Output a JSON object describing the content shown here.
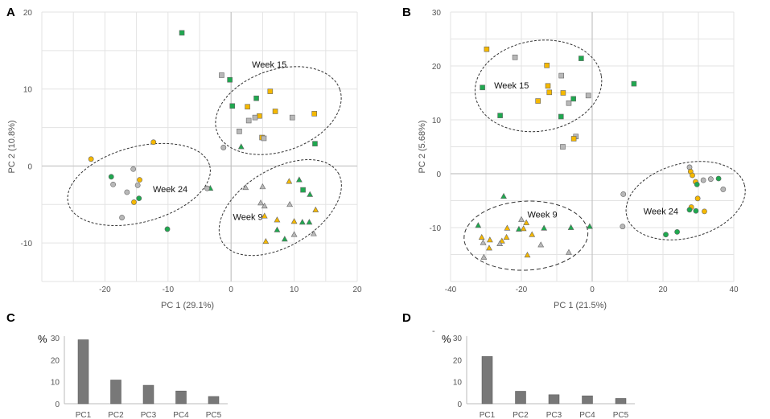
{
  "colors": {
    "green": "#1fa84f",
    "grey": "#b8b8b8",
    "yellow": "#f5b800",
    "bar": "#787878",
    "grid": "#e3e3e3"
  },
  "chart_data": [
    {
      "panel": "A",
      "type": "scatter",
      "xlabel": "PC 1 (29.1%)",
      "ylabel": "PC 2 (10.8%)",
      "xlim": [
        -30,
        20
      ],
      "ylim": [
        -15,
        20
      ],
      "xticks": [
        -20,
        -10,
        0,
        10,
        20
      ],
      "yticks": [
        -10,
        0,
        10,
        20
      ],
      "ellipses": [
        {
          "label": "Week 15",
          "cx": 7.5,
          "cy": 7.2,
          "rx": 10.3,
          "ry": 5.3,
          "angle": -19,
          "dash": "3,2"
        },
        {
          "label": "Week 9",
          "cx": 7.8,
          "cy": -5.4,
          "rx": 10.7,
          "ry": 5.0,
          "angle": -31,
          "dash": "3,2"
        },
        {
          "label": "Week 24",
          "cx": -14.6,
          "cy": -2.4,
          "rx": 11.6,
          "ry": 4.9,
          "angle": -15,
          "dash": "3,2"
        }
      ],
      "group_labels": [
        {
          "text": "Week 15",
          "x": 3.3,
          "y": 12.8
        },
        {
          "text": "Week 9",
          "x": 0.3,
          "y": -7.0
        },
        {
          "text": "Week 24",
          "x": -12.4,
          "y": -3.4
        }
      ],
      "points": [
        {
          "x": -7.8,
          "y": 17.3,
          "shape": "square",
          "color": "green"
        },
        {
          "x": -1.5,
          "y": 11.8,
          "shape": "square",
          "color": "grey"
        },
        {
          "x": -0.2,
          "y": 11.2,
          "shape": "square",
          "color": "green"
        },
        {
          "x": 0.2,
          "y": 7.8,
          "shape": "square",
          "color": "green"
        },
        {
          "x": 4.0,
          "y": 8.8,
          "shape": "square",
          "color": "green"
        },
        {
          "x": 6.2,
          "y": 9.7,
          "shape": "square",
          "color": "yellow"
        },
        {
          "x": 2.6,
          "y": 7.7,
          "shape": "square",
          "color": "yellow"
        },
        {
          "x": 4.5,
          "y": 6.5,
          "shape": "square",
          "color": "yellow"
        },
        {
          "x": 7.0,
          "y": 7.1,
          "shape": "square",
          "color": "yellow"
        },
        {
          "x": 3.8,
          "y": 6.3,
          "shape": "square",
          "color": "grey"
        },
        {
          "x": 2.8,
          "y": 5.9,
          "shape": "square",
          "color": "grey"
        },
        {
          "x": 9.7,
          "y": 6.3,
          "shape": "square",
          "color": "grey"
        },
        {
          "x": 13.2,
          "y": 6.8,
          "shape": "square",
          "color": "yellow"
        },
        {
          "x": 1.3,
          "y": 4.5,
          "shape": "square",
          "color": "grey"
        },
        {
          "x": 4.9,
          "y": 3.7,
          "shape": "square",
          "color": "yellow"
        },
        {
          "x": 5.2,
          "y": 3.6,
          "shape": "square",
          "color": "grey"
        },
        {
          "x": 13.3,
          "y": 2.9,
          "shape": "square",
          "color": "green"
        },
        {
          "x": -1.2,
          "y": 2.4,
          "shape": "circle",
          "color": "grey"
        },
        {
          "x": 1.6,
          "y": 2.5,
          "shape": "triangle",
          "color": "green"
        },
        {
          "x": -3.3,
          "y": -2.9,
          "shape": "triangle",
          "color": "green"
        },
        {
          "x": 2.3,
          "y": -2.8,
          "shape": "triangle",
          "color": "grey"
        },
        {
          "x": 5.0,
          "y": -2.7,
          "shape": "triangle",
          "color": "grey"
        },
        {
          "x": 9.2,
          "y": -2.0,
          "shape": "triangle",
          "color": "yellow"
        },
        {
          "x": 10.8,
          "y": -1.8,
          "shape": "triangle",
          "color": "green"
        },
        {
          "x": 11.4,
          "y": -3.1,
          "shape": "square",
          "color": "green"
        },
        {
          "x": 12.5,
          "y": -3.7,
          "shape": "triangle",
          "color": "green"
        },
        {
          "x": 4.7,
          "y": -4.8,
          "shape": "triangle",
          "color": "grey"
        },
        {
          "x": 5.3,
          "y": -5.2,
          "shape": "triangle",
          "color": "grey"
        },
        {
          "x": 9.3,
          "y": -5.0,
          "shape": "triangle",
          "color": "grey"
        },
        {
          "x": 13.4,
          "y": -5.7,
          "shape": "triangle",
          "color": "yellow"
        },
        {
          "x": 5.3,
          "y": -6.5,
          "shape": "triangle",
          "color": "yellow"
        },
        {
          "x": 7.3,
          "y": -7.0,
          "shape": "triangle",
          "color": "yellow"
        },
        {
          "x": 10.0,
          "y": -7.2,
          "shape": "triangle",
          "color": "yellow"
        },
        {
          "x": 11.3,
          "y": -7.3,
          "shape": "triangle",
          "color": "green"
        },
        {
          "x": 12.4,
          "y": -7.3,
          "shape": "triangle",
          "color": "green"
        },
        {
          "x": 7.3,
          "y": -8.3,
          "shape": "triangle",
          "color": "green"
        },
        {
          "x": 10.0,
          "y": -8.9,
          "shape": "triangle",
          "color": "grey"
        },
        {
          "x": 13.1,
          "y": -8.8,
          "shape": "triangle",
          "color": "grey"
        },
        {
          "x": 8.5,
          "y": -9.5,
          "shape": "triangle",
          "color": "green"
        },
        {
          "x": 5.5,
          "y": -9.8,
          "shape": "triangle",
          "color": "yellow"
        },
        {
          "x": -12.3,
          "y": 3.1,
          "shape": "circle",
          "color": "yellow"
        },
        {
          "x": -22.2,
          "y": 0.9,
          "shape": "circle",
          "color": "yellow"
        },
        {
          "x": -15.5,
          "y": -0.4,
          "shape": "circle",
          "color": "grey"
        },
        {
          "x": -19.0,
          "y": -1.4,
          "shape": "circle",
          "color": "green"
        },
        {
          "x": -14.5,
          "y": -1.8,
          "shape": "circle",
          "color": "yellow"
        },
        {
          "x": -18.7,
          "y": -2.4,
          "shape": "circle",
          "color": "grey"
        },
        {
          "x": -14.8,
          "y": -2.5,
          "shape": "circle",
          "color": "grey"
        },
        {
          "x": -16.5,
          "y": -3.4,
          "shape": "circle",
          "color": "grey"
        },
        {
          "x": -14.6,
          "y": -4.2,
          "shape": "circle",
          "color": "green"
        },
        {
          "x": -15.4,
          "y": -4.7,
          "shape": "circle",
          "color": "yellow"
        },
        {
          "x": -3.8,
          "y": -2.9,
          "shape": "circle",
          "color": "grey"
        },
        {
          "x": -17.3,
          "y": -6.7,
          "shape": "circle",
          "color": "grey"
        },
        {
          "x": -10.1,
          "y": -8.2,
          "shape": "circle",
          "color": "green"
        }
      ]
    },
    {
      "panel": "B",
      "type": "scatter",
      "xlabel": "PC 1 (21.5%)",
      "ylabel": "PC 2 (5.68%)",
      "xlim": [
        -40,
        40
      ],
      "ylim": [
        -20,
        30
      ],
      "xticks": [
        -40,
        -20,
        0,
        20,
        40
      ],
      "yticks": [
        -10,
        0,
        10,
        20,
        30
      ],
      "ellipses": [
        {
          "label": "Week 15",
          "cx": -15.2,
          "cy": 16.3,
          "rx": 18.0,
          "ry": 8.4,
          "angle": -9,
          "dash": "3,2"
        },
        {
          "label": "Week 9",
          "cx": -18.7,
          "cy": -11.5,
          "rx": 17.5,
          "ry": 6.4,
          "angle": -3,
          "dash": "5,3"
        },
        {
          "label": "Week 24",
          "cx": 26.4,
          "cy": -5.0,
          "rx": 17.2,
          "ry": 6.9,
          "angle": -15,
          "dash": "3,2"
        }
      ],
      "group_labels": [
        {
          "text": "Week 15",
          "x": -27.7,
          "y": 15.8
        },
        {
          "text": "Week 9",
          "x": -18.3,
          "y": -8.1
        },
        {
          "text": "Week 24",
          "x": 14.5,
          "y": -7.5
        }
      ],
      "points": [
        {
          "x": -29.8,
          "y": 23.1,
          "shape": "square",
          "color": "yellow"
        },
        {
          "x": -21.8,
          "y": 21.6,
          "shape": "square",
          "color": "grey"
        },
        {
          "x": -3.1,
          "y": 21.4,
          "shape": "square",
          "color": "green"
        },
        {
          "x": -12.8,
          "y": 20.1,
          "shape": "square",
          "color": "yellow"
        },
        {
          "x": -8.7,
          "y": 18.2,
          "shape": "square",
          "color": "grey"
        },
        {
          "x": 11.8,
          "y": 16.7,
          "shape": "square",
          "color": "green"
        },
        {
          "x": -12.5,
          "y": 16.3,
          "shape": "square",
          "color": "yellow"
        },
        {
          "x": -31.0,
          "y": 16.0,
          "shape": "square",
          "color": "green"
        },
        {
          "x": -12.1,
          "y": 15.1,
          "shape": "square",
          "color": "yellow"
        },
        {
          "x": -8.2,
          "y": 15.0,
          "shape": "square",
          "color": "yellow"
        },
        {
          "x": -1.1,
          "y": 14.5,
          "shape": "square",
          "color": "grey"
        },
        {
          "x": -5.3,
          "y": 13.9,
          "shape": "square",
          "color": "green"
        },
        {
          "x": -15.3,
          "y": 13.5,
          "shape": "square",
          "color": "yellow"
        },
        {
          "x": -6.6,
          "y": 13.1,
          "shape": "square",
          "color": "grey"
        },
        {
          "x": -26.0,
          "y": 10.8,
          "shape": "square",
          "color": "green"
        },
        {
          "x": -8.8,
          "y": 10.6,
          "shape": "square",
          "color": "green"
        },
        {
          "x": -4.6,
          "y": 6.9,
          "shape": "square",
          "color": "grey"
        },
        {
          "x": -5.2,
          "y": 6.5,
          "shape": "square",
          "color": "yellow"
        },
        {
          "x": -8.3,
          "y": 5.0,
          "shape": "square",
          "color": "grey"
        },
        {
          "x": 27.5,
          "y": 1.2,
          "shape": "circle",
          "color": "grey"
        },
        {
          "x": 27.8,
          "y": 0.4,
          "shape": "circle",
          "color": "yellow"
        },
        {
          "x": 28.3,
          "y": -0.3,
          "shape": "circle",
          "color": "yellow"
        },
        {
          "x": 33.5,
          "y": -1.0,
          "shape": "circle",
          "color": "grey"
        },
        {
          "x": 35.7,
          "y": -0.9,
          "shape": "circle",
          "color": "green"
        },
        {
          "x": 31.4,
          "y": -1.2,
          "shape": "circle",
          "color": "grey"
        },
        {
          "x": 29.2,
          "y": -1.5,
          "shape": "circle",
          "color": "yellow"
        },
        {
          "x": 29.6,
          "y": -2.0,
          "shape": "circle",
          "color": "green"
        },
        {
          "x": 37.0,
          "y": -2.9,
          "shape": "circle",
          "color": "grey"
        },
        {
          "x": 8.8,
          "y": -3.8,
          "shape": "circle",
          "color": "grey"
        },
        {
          "x": 29.8,
          "y": -4.6,
          "shape": "circle",
          "color": "yellow"
        },
        {
          "x": 28.0,
          "y": -6.2,
          "shape": "circle",
          "color": "yellow"
        },
        {
          "x": 27.5,
          "y": -6.7,
          "shape": "circle",
          "color": "green"
        },
        {
          "x": 29.3,
          "y": -6.9,
          "shape": "circle",
          "color": "green"
        },
        {
          "x": 31.7,
          "y": -7.0,
          "shape": "circle",
          "color": "yellow"
        },
        {
          "x": 8.6,
          "y": -9.8,
          "shape": "circle",
          "color": "grey"
        },
        {
          "x": 24.0,
          "y": -10.8,
          "shape": "circle",
          "color": "green"
        },
        {
          "x": 20.8,
          "y": -11.3,
          "shape": "circle",
          "color": "green"
        },
        {
          "x": -25.0,
          "y": -4.2,
          "shape": "triangle",
          "color": "green"
        },
        {
          "x": -20.0,
          "y": -8.5,
          "shape": "triangle",
          "color": "grey"
        },
        {
          "x": -18.6,
          "y": -9.1,
          "shape": "triangle",
          "color": "yellow"
        },
        {
          "x": -32.2,
          "y": -9.6,
          "shape": "triangle",
          "color": "green"
        },
        {
          "x": -20.7,
          "y": -10.3,
          "shape": "triangle",
          "color": "green"
        },
        {
          "x": -24.0,
          "y": -10.1,
          "shape": "triangle",
          "color": "yellow"
        },
        {
          "x": -19.4,
          "y": -10.2,
          "shape": "triangle",
          "color": "yellow"
        },
        {
          "x": -13.6,
          "y": -10.1,
          "shape": "triangle",
          "color": "green"
        },
        {
          "x": -6.0,
          "y": -10.0,
          "shape": "triangle",
          "color": "green"
        },
        {
          "x": -0.7,
          "y": -9.8,
          "shape": "triangle",
          "color": "green"
        },
        {
          "x": -17.0,
          "y": -11.3,
          "shape": "triangle",
          "color": "yellow"
        },
        {
          "x": -31.2,
          "y": -11.8,
          "shape": "triangle",
          "color": "yellow"
        },
        {
          "x": -24.2,
          "y": -11.8,
          "shape": "triangle",
          "color": "yellow"
        },
        {
          "x": -28.9,
          "y": -12.3,
          "shape": "triangle",
          "color": "yellow"
        },
        {
          "x": -25.5,
          "y": -12.5,
          "shape": "triangle",
          "color": "yellow"
        },
        {
          "x": -30.8,
          "y": -12.8,
          "shape": "triangle",
          "color": "grey"
        },
        {
          "x": -26.1,
          "y": -13.0,
          "shape": "triangle",
          "color": "grey"
        },
        {
          "x": -14.5,
          "y": -13.2,
          "shape": "triangle",
          "color": "grey"
        },
        {
          "x": -29.1,
          "y": -13.8,
          "shape": "triangle",
          "color": "yellow"
        },
        {
          "x": -6.6,
          "y": -14.6,
          "shape": "triangle",
          "color": "grey"
        },
        {
          "x": -18.3,
          "y": -15.1,
          "shape": "triangle",
          "color": "yellow"
        },
        {
          "x": -30.6,
          "y": -15.5,
          "shape": "triangle",
          "color": "grey"
        }
      ]
    },
    {
      "panel": "C",
      "type": "bar",
      "ylabel": "%",
      "categories": [
        "PC1",
        "PC2",
        "PC3",
        "PC4",
        "PC5"
      ],
      "values": [
        29.1,
        10.8,
        8.4,
        5.8,
        3.3
      ],
      "ylim": [
        0,
        30
      ],
      "yticks": [
        0,
        10,
        20,
        30
      ]
    },
    {
      "panel": "D",
      "type": "bar",
      "ylabel": "%",
      "categories": [
        "PC1",
        "PC2",
        "PC3",
        "PC4",
        "PC5"
      ],
      "values": [
        21.5,
        5.68,
        4.1,
        3.6,
        2.4
      ],
      "ylim": [
        0,
        30
      ],
      "yticks": [
        0,
        10,
        20,
        30
      ]
    }
  ]
}
